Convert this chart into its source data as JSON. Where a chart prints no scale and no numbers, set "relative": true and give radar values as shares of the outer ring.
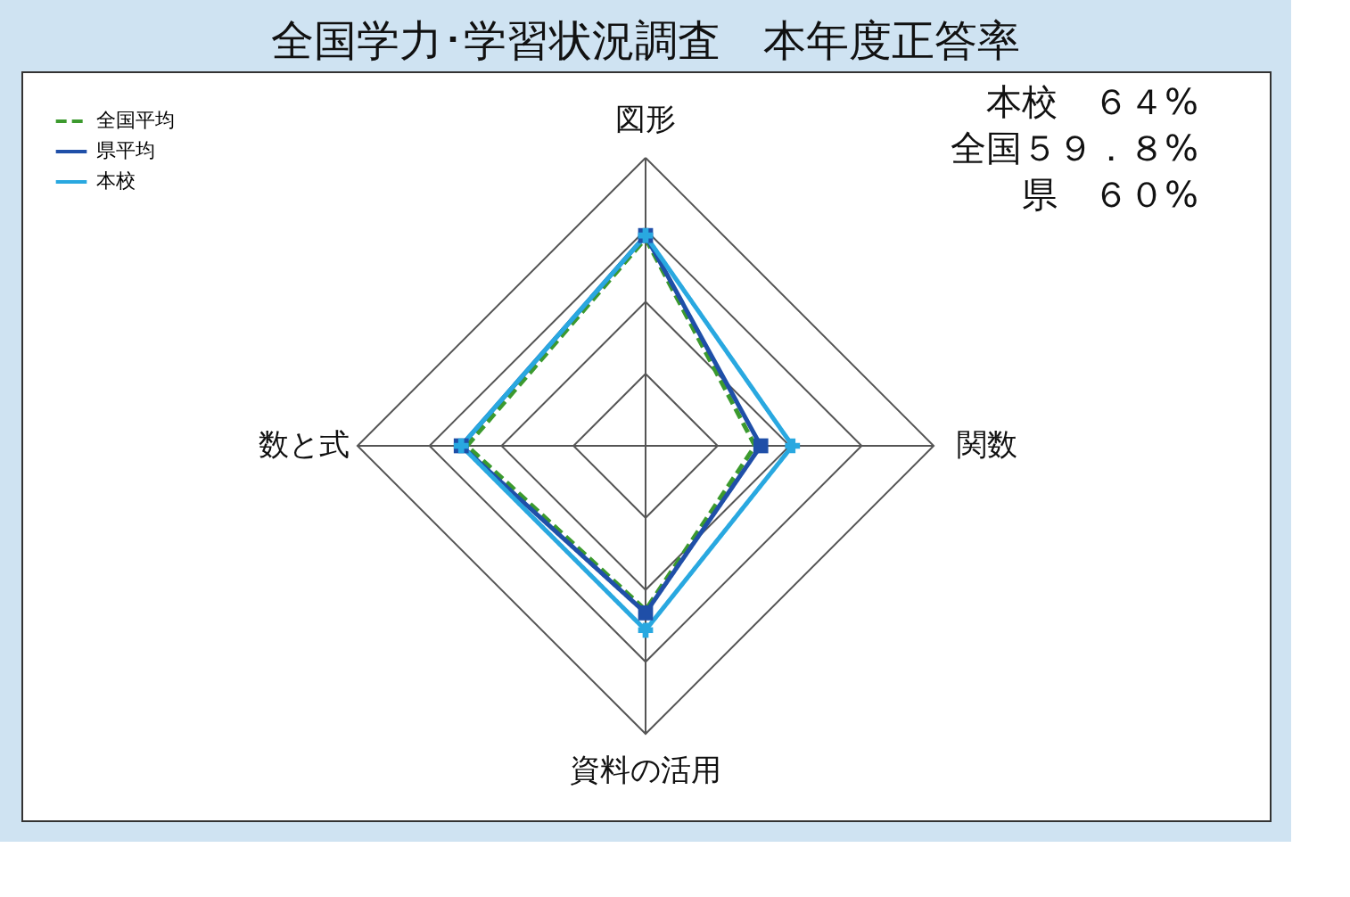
{
  "chart_data": {
    "type": "radar",
    "title": "全国学力･学習状況調査　本年度正答率",
    "relative": true,
    "categories": [
      "図形",
      "関数",
      "資料の活用",
      "数と式"
    ],
    "series": [
      {
        "name": "全国平均",
        "color": "#3c9a2e",
        "line_style": "dashed",
        "marker": "none",
        "values": [
          0.72,
          0.38,
          0.57,
          0.62
        ]
      },
      {
        "name": "県平均",
        "color": "#1f4fa8",
        "line_style": "solid",
        "marker": "square",
        "values": [
          0.73,
          0.4,
          0.58,
          0.64
        ]
      },
      {
        "name": "本校",
        "color": "#29a8e0",
        "line_style": "solid",
        "marker": "cross",
        "values": [
          0.73,
          0.51,
          0.64,
          0.64
        ]
      }
    ],
    "annotations": [
      "本校　６４%",
      "全国５９．８%",
      "県　６０%"
    ],
    "grid": true,
    "legend": "top left"
  }
}
